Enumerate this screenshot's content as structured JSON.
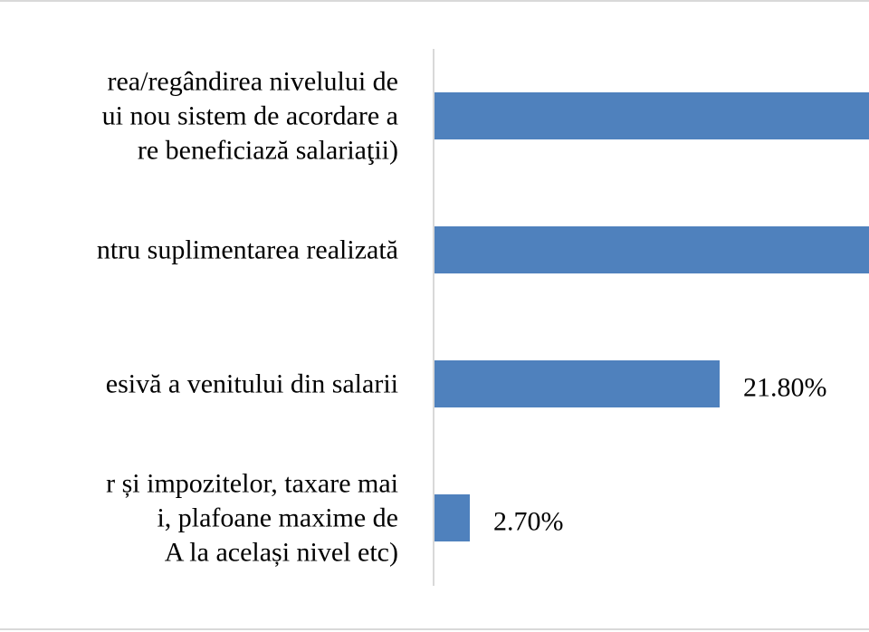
{
  "chart_data": {
    "type": "bar",
    "orientation": "horizontal",
    "categories": [
      [
        "rea/regândirea nivelului de",
        "ui nou sistem de acordare a",
        "re beneficiază salariaţii)"
      ],
      [
        "ntru suplimentarea realizată"
      ],
      [
        "esivă a venitului din salarii"
      ],
      [
        "r și impozitelor, taxare mai",
        "i, plafoane maxime de",
        "A la același nivel etc)"
      ]
    ],
    "values": [
      null,
      null,
      21.8,
      2.7
    ],
    "data_labels": [
      "",
      "",
      "21.80%",
      "2.70%"
    ],
    "bar_color": "#4f81bd",
    "xlim": [
      0,
      52
    ],
    "grid": false,
    "legend": "none"
  }
}
